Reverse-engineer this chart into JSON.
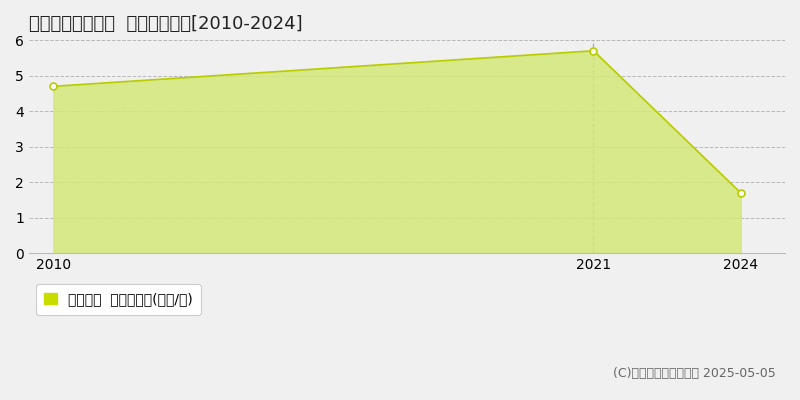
{
  "title": "東田川郡庄内町跡  土地価格推移[2010-2024]",
  "x_values": [
    2010,
    2021,
    2024
  ],
  "y_values": [
    4.7,
    5.7,
    1.7
  ],
  "line_color": "#b8cc00",
  "fill_color": "#d4e87a",
  "fill_alpha": 0.85,
  "marker_facecolor": "#ffffff",
  "marker_edge_color": "#b8cc00",
  "marker_size": 5,
  "xlim": [
    2009.5,
    2024.9
  ],
  "ylim": [
    0,
    6
  ],
  "yticks": [
    0,
    1,
    2,
    3,
    4,
    5,
    6
  ],
  "xticks": [
    2010,
    2021,
    2024
  ],
  "grid_color": "#aaaaaa",
  "background_color": "#f0f0f0",
  "plot_bg_color": "#f0f0f0",
  "legend_label": "土地価格  平均坪単価(万円/坪)",
  "legend_color": "#c8dc00",
  "copyright_text": "(C)土地価格ドットコム 2025-05-05",
  "title_fontsize": 13,
  "tick_fontsize": 10,
  "legend_fontsize": 10,
  "copyright_fontsize": 9,
  "vline_x": 2021,
  "vline_color": "#aaaaaa"
}
